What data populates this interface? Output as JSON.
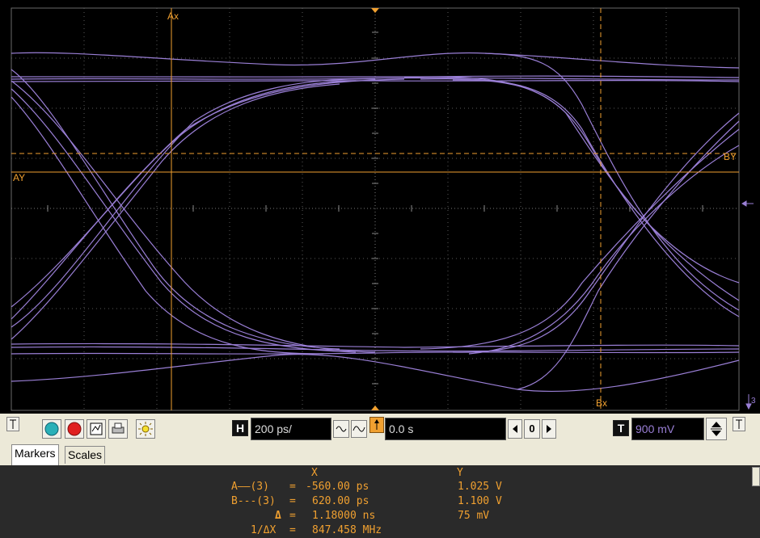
{
  "markers": {
    "ax_label": "Ax",
    "bx_label": "Bx",
    "ay_label": "AY",
    "by_label": "BY"
  },
  "channel_marker": "3",
  "toolbar": {
    "horizontal_scale": "200 ps/",
    "horizontal_position": "0.0 s",
    "stepper_value": "0",
    "trigger_level": "900 mV",
    "h_icon": "H",
    "t_icon": "T"
  },
  "tabs": [
    {
      "label": "Markers",
      "active": true
    },
    {
      "label": "Scales",
      "active": false
    }
  ],
  "readout": {
    "col_x": "X",
    "col_y": "Y",
    "rows": [
      {
        "label": "A——(3)",
        "eq": "=",
        "x": "-560.00 ps",
        "y": "1.025 V"
      },
      {
        "label": "B---(3)",
        "eq": "=",
        "x": "620.00 ps",
        "y": "1.100 V"
      },
      {
        "label": "Δ",
        "eq": "=",
        "x": "1.18000 ns",
        "y": "75 mV"
      },
      {
        "label": "1/ΔX",
        "eq": "=",
        "x": "847.458 MHz",
        "y": ""
      }
    ]
  },
  "colors": {
    "trace": "#9a7fd6",
    "marker": "#f0a030",
    "grid": "#505050"
  }
}
